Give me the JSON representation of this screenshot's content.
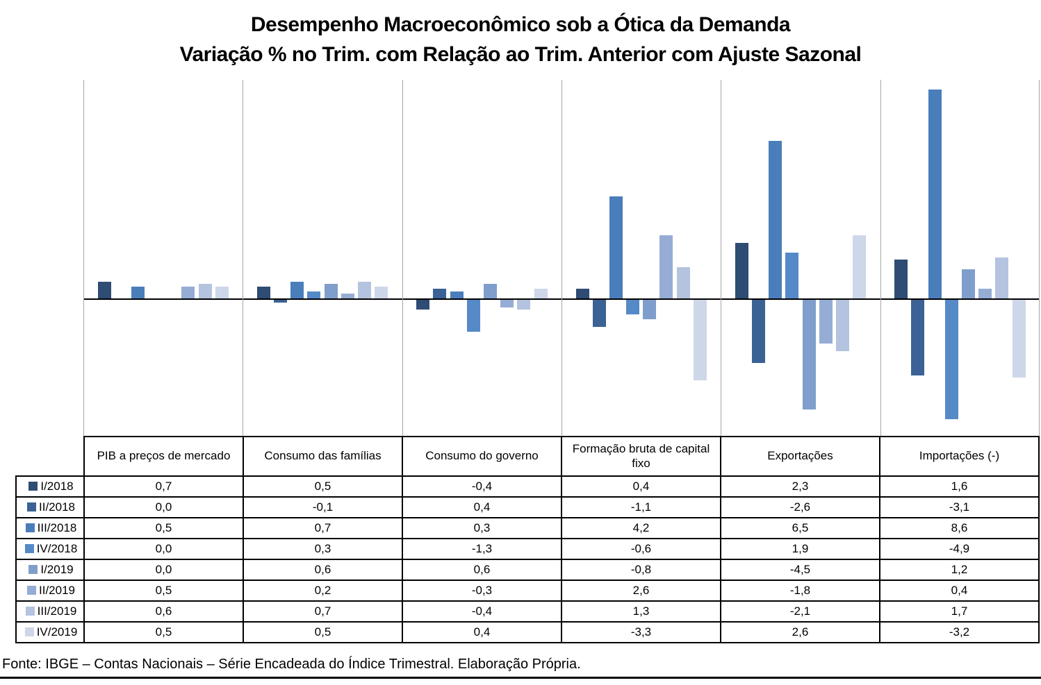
{
  "title": {
    "line1": "Desempenho Macroeconômico sob a Ótica da Demanda",
    "line2": "Variação % no Trim. com Relação ao Trim. Anterior com Ajuste Sazonal"
  },
  "footer": {
    "source": "Fonte: IBGE – Contas Nacionais – Série Encadeada do Índice Trimestral. Elaboração Própria."
  },
  "chart_data": {
    "type": "bar",
    "title": "Desempenho Macroeconômico sob a Ótica da Demanda — Variação % no Trim. com Relação ao Trim. Anterior com Ajuste Sazonal",
    "categories": [
      "PIB a preços de mercado",
      "Consumo das famílias",
      "Consumo do governo",
      "Formação bruta de capital fixo",
      "Exportações",
      "Importações (-)"
    ],
    "series": [
      {
        "name": "I/2018",
        "color": "#2e4c74",
        "values": [
          0.7,
          0.5,
          -0.4,
          0.4,
          2.3,
          1.6
        ]
      },
      {
        "name": "II/2018",
        "color": "#3a6295",
        "values": [
          0.0,
          -0.1,
          0.4,
          -1.1,
          -2.6,
          -3.1
        ]
      },
      {
        "name": "III/2018",
        "color": "#4a7ebb",
        "values": [
          0.5,
          0.7,
          0.3,
          4.2,
          6.5,
          8.6
        ]
      },
      {
        "name": "IV/2018",
        "color": "#5689c7",
        "values": [
          0.0,
          0.3,
          -1.3,
          -0.6,
          1.9,
          -4.9
        ]
      },
      {
        "name": "I/2019",
        "color": "#7f9ecc",
        "values": [
          0.0,
          0.6,
          0.6,
          -0.8,
          -4.5,
          1.2
        ]
      },
      {
        "name": "II/2019",
        "color": "#95acd5",
        "values": [
          0.5,
          0.2,
          -0.3,
          2.6,
          -1.8,
          0.4
        ]
      },
      {
        "name": "III/2019",
        "color": "#b4c3df",
        "values": [
          0.6,
          0.7,
          -0.4,
          1.3,
          -2.1,
          1.7
        ]
      },
      {
        "name": "IV/2019",
        "color": "#ced7e9",
        "values": [
          0.5,
          0.5,
          0.4,
          -3.3,
          2.6,
          -3.2
        ]
      }
    ],
    "value_format": "comma-decimal, 1 fraction digit",
    "ylabel": "",
    "xlabel": "",
    "ylim": [
      -5.7,
      9.0
    ],
    "grid": "vertical category separators only, no y-axis labels",
    "legend_position": "data-table row labels below chart"
  }
}
